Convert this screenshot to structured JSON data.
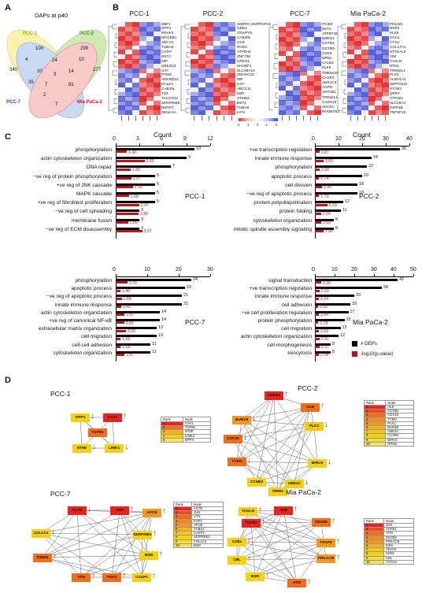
{
  "panels": {
    "A": {
      "letter": "A",
      "title": "DAPs at p40"
    },
    "B": {
      "letter": "B"
    },
    "C": {
      "letter": "C"
    },
    "D": {
      "letter": "D"
    }
  },
  "venn": {
    "sets": [
      {
        "name": "PCC-1",
        "color": "#f2e86b",
        "text_color": "#b8a800"
      },
      {
        "name": "PCC-2",
        "color": "#a8d878",
        "text_color": "#3a9a10"
      },
      {
        "name": "PCC-7",
        "color": "#9dbbe8",
        "text_color": "#2b3fd8"
      },
      {
        "name": "Mia PaCa-2",
        "color": "#f3a1a1",
        "text_color": "#e0102a"
      }
    ],
    "numbers": [
      "100",
      "299",
      "340",
      "24",
      "277",
      "20",
      "4",
      "14",
      "10",
      "3",
      "35",
      "7",
      "81",
      "2",
      "7"
    ]
  },
  "heatmaps": [
    {
      "title": "PCC-1",
      "genes": [
        "SBF1",
        "DPP4",
        "ERAP2",
        "MAGEB1",
        "ABCC2",
        "TUBA8",
        "CATIF",
        "DSTC",
        "MIF",
        "UBE2D3",
        "UXT",
        "PTMS",
        "ANKRD22",
        "DCLK1",
        "CAB39L",
        "TX2",
        "TACSTD2",
        "SERPINB8",
        "BSPRY",
        "SEMA3A"
      ]
    },
    {
      "title": "PCC-2",
      "genes": [
        "SNRPG;SNRPGP15",
        "GDE1",
        "CRAPYN",
        "CAB39L",
        "GCK",
        "RHOC",
        "ATP5H3",
        "ZNF706",
        "CREG1",
        "SHURF1",
        "SLC39A10",
        "ZDHHC20",
        "MIF",
        "UXT",
        "ABCC11",
        "EBP",
        "STMN2",
        "BST2",
        "TUBA8",
        "IAF9"
      ]
    },
    {
      "title": "PCC-7",
      "genes": [
        "ITGB4",
        "BST2",
        "ATP5F1E",
        "NME53",
        "GSTM1",
        "GSTM3",
        "CDK6",
        "MPDL",
        "CALB2",
        "KLK6",
        "TMEM167",
        "CASP4",
        "AKR1C3",
        "AGPH",
        "AKR1B1",
        "TPD52L1",
        "CADS18",
        "ADH1C",
        "RHOBTB3"
      ]
    },
    {
      "title": "Mia PaCa-2",
      "genes": [
        "PDLIM1",
        "NRP2",
        "KLK6",
        "GCH1",
        "CTSC",
        "COL17A1",
        "ST3GAL5",
        "VIM",
        "TAGLN",
        "RTN1",
        "TPD52L1",
        "PLS3",
        "ALDH1A1",
        "SEPTIN10",
        "IFITM3",
        "QPRT",
        "ATP1B1",
        "SLC29A4",
        "INPP4B",
        "TNFSF18"
      ]
    }
  ],
  "colorbar": {
    "labels": [
      "2",
      "1",
      "0",
      "-1",
      "-2"
    ]
  },
  "bar_charts": [
    {
      "title": "PCC-1",
      "axis_title": "Count",
      "ticks": [
        "0",
        "3",
        "6",
        "9",
        "12"
      ],
      "max": 12,
      "terms": [
        "phosphorylation",
        "actin cytoskeleton organization",
        "DNA repair",
        "−ve reg of protein phosphorylation",
        "+ve reg of JNK cascade",
        "MAPK cascade",
        "+ve reg of fibroblast proliferation",
        "−ve reg of cell spreading",
        "membrane fusion",
        "−ve reg of ECM disassembly"
      ],
      "counts": [
        10,
        9,
        7,
        5,
        5,
        5,
        5,
        3,
        3,
        3
      ],
      "pvals": [
        "1.40",
        "3.65",
        "1.89",
        "1.97",
        "2.18",
        "1.68",
        "2.97",
        "2.89",
        "1.56",
        "3.37"
      ]
    },
    {
      "title": "PCC-2",
      "axis_title": "Count",
      "ticks": [
        "0",
        "10",
        "20",
        "30",
        "40"
      ],
      "max": 40,
      "terms": [
        "+ve transcription regulation",
        "innate immune response",
        "phosphorylation",
        "apoptotic process",
        "cell division",
        "−ve reg of apoptotic process",
        "protein polyubiquitination",
        "protein folding",
        "cytoskeleton organization",
        "mitotic spindle assembly signaling"
      ],
      "counts": [
        36,
        24,
        22,
        20,
        18,
        18,
        12,
        11,
        8,
        8
      ],
      "pvals": [
        "1.87",
        "3.63",
        "2.00",
        "1.74",
        "2.96",
        "1.79",
        "5.23",
        "2.54",
        "2.65",
        "3.56"
      ]
    },
    {
      "title": "PCC-7",
      "axis_title": "",
      "ticks": [
        "0",
        "10",
        "20",
        "30"
      ],
      "max": 30,
      "terms": [
        "phosphorylation",
        "apoptotic process",
        "−ve reg of apoptotic process",
        "innate immune response",
        "actin cytoskeleton organization",
        "+ve reg of canonical NF-κB",
        "extracellular matrix organization",
        "cell migration",
        "cell-cell adhesion",
        "cytoskeleton organization"
      ],
      "counts": [
        24,
        22,
        21,
        21,
        14,
        14,
        13,
        13,
        11,
        11
      ],
      "pvals": [
        "3.70",
        "1.49",
        "1.89",
        "1.65",
        "2.87",
        "2.65",
        "3.20",
        "1.55",
        "1.58",
        "2.87"
      ]
    },
    {
      "title": "Mia PaCa-2",
      "axis_title": "",
      "ticks": [
        "0",
        "10",
        "20",
        "30",
        "40",
        "50"
      ],
      "max": 50,
      "terms": [
        "signal transduction",
        "+ve transcription regulation",
        "innate immune response",
        "cell adhesion",
        "−ve cell proliferation regulation",
        "protein phosphorylation",
        "cell migration",
        "actin cytoskeleton organization",
        "cell morphogenesis",
        "exocytosis"
      ],
      "counts": [
        42,
        34,
        20,
        18,
        17,
        15,
        13,
        12,
        8,
        8
      ],
      "pvals": [
        "3.20",
        "2.20",
        "2.04",
        "1.60",
        "1.94",
        "1.79",
        "2.03",
        "2.31",
        "2.37",
        "2.08"
      ]
    }
  ],
  "legend": {
    "deps": "# DEPs",
    "pval": "-log10(p-value)"
  },
  "networks": [
    {
      "title": "PCC-1",
      "nodes": [
        {
          "label": "CAV1",
          "color": "#e8241c",
          "arrow": "up"
        },
        {
          "label": "DPP4",
          "color": "#f6d10e",
          "arrow": "down"
        },
        {
          "label": "TGFB1",
          "color": "#f26d18",
          "arrow": ""
        },
        {
          "label": "NT5E",
          "color": "#f6d10e",
          "arrow": "down"
        },
        {
          "label": "LIMK1",
          "color": "#f6d10e",
          "arrow": "down"
        }
      ],
      "table": [
        [
          "1",
          "CAV1"
        ],
        [
          "2",
          "TGFB1"
        ],
        [
          "3",
          "NT5E"
        ],
        [
          "4",
          "LIMK1"
        ],
        [
          "5",
          "DPP4"
        ]
      ]
    },
    {
      "title": "PCC-2",
      "nodes": [
        {
          "label": "CDKN1",
          "color": "#e8241c",
          "arrow": "up"
        },
        {
          "label": "BUB1B",
          "color": "#f39a1e",
          "arrow": "down"
        },
        {
          "label": "ALB",
          "color": "#f26d18",
          "arrow": "up"
        },
        {
          "label": "CDC20",
          "color": "#f26d18",
          "arrow": "down"
        },
        {
          "label": "PLK1",
          "color": "#f6c90f",
          "arrow": "down"
        },
        {
          "label": "TYMS",
          "color": "#f26d18",
          "arrow": "down"
        },
        {
          "label": "BIRC5",
          "color": "#f6d10e",
          "arrow": "down"
        },
        {
          "label": "CCNB2",
          "color": "#f6d10e",
          "arrow": ""
        },
        {
          "label": "UBE2C",
          "color": "#f6d10e",
          "arrow": "down"
        },
        {
          "label": "RRM2",
          "color": "#f6d10e",
          "arrow": ""
        }
      ],
      "table": [
        [
          "1",
          "ALB"
        ],
        [
          "2",
          "CCNB1"
        ],
        [
          "3",
          "CDC20"
        ],
        [
          "4",
          "TYMS"
        ],
        [
          "5",
          "PLK1"
        ],
        [
          "6",
          "BUB1B"
        ],
        [
          "7",
          "UBE2C"
        ],
        [
          "8",
          "CCNB2"
        ],
        [
          "9",
          "BIRC5"
        ],
        [
          "10",
          "RRM2"
        ]
      ]
    },
    {
      "title": "PCC-7",
      "nodes": [
        {
          "label": "ACTB",
          "color": "#e8241c",
          "arrow": "down"
        },
        {
          "label": "JUN",
          "color": "#e8241c",
          "arrow": "up"
        },
        {
          "label": "APOE",
          "color": "#f39a1e",
          "arrow": "up"
        },
        {
          "label": "COL1A2",
          "color": "#f6d10e",
          "arrow": "down"
        },
        {
          "label": "SERPINE1",
          "color": "#f6d10e",
          "arrow": "up"
        },
        {
          "label": "THBS1",
          "color": "#f26d18",
          "arrow": "up"
        },
        {
          "label": "B2M",
          "color": "#f6d10e",
          "arrow": "up"
        },
        {
          "label": "VTN",
          "color": "#f26d18",
          "arrow": "up"
        },
        {
          "label": "FGF2",
          "color": "#f26d18",
          "arrow": "up"
        },
        {
          "label": "CASP1",
          "color": "#f6d10e",
          "arrow": "up"
        }
      ],
      "table": [
        [
          "1",
          "ACTB"
        ],
        [
          "2",
          "JUN"
        ],
        [
          "3",
          "VTN"
        ],
        [
          "4",
          "FGF2"
        ],
        [
          "5",
          "APOE"
        ],
        [
          "6",
          "THBS1"
        ],
        [
          "7",
          "CASP1"
        ],
        [
          "8",
          "SERPINE1"
        ],
        [
          "9",
          "COL1A2"
        ],
        [
          "10",
          "B2M"
        ]
      ]
    },
    {
      "title": "Mia PaCa-2",
      "nodes": [
        {
          "label": "TAGLN",
          "color": "#f6d10e",
          "arrow": "up"
        },
        {
          "label": "JUN",
          "color": "#e8241c",
          "arrow": "up"
        },
        {
          "label": "TGFB1",
          "color": "#e8241c",
          "arrow": "up"
        },
        {
          "label": "DDX58",
          "color": "#f26d18",
          "arrow": "up"
        },
        {
          "label": "CD81",
          "color": "#f6d10e",
          "arrow": "up"
        },
        {
          "label": "TRAF6",
          "color": "#f39a1e",
          "arrow": "up"
        },
        {
          "label": "CBL",
          "color": "#f6d10e",
          "arrow": "up"
        },
        {
          "label": "PRKACB",
          "color": "#f39a1e",
          "arrow": "up"
        },
        {
          "label": "B2M",
          "color": "#f6d10e",
          "arrow": "up"
        },
        {
          "label": "ATM",
          "color": "#f26d18",
          "arrow": "up"
        }
      ],
      "table": [
        [
          "1",
          "JUN"
        ],
        [
          "2",
          "TGFB1"
        ],
        [
          "3",
          "ATM"
        ],
        [
          "4",
          "DDX58"
        ],
        [
          "5",
          "PRKACB"
        ],
        [
          "6",
          "B2M"
        ],
        [
          "7",
          "TRAF6"
        ],
        [
          "8",
          "CD81"
        ],
        [
          "9",
          "CBL"
        ],
        [
          "10",
          "TAGLN"
        ]
      ]
    }
  ],
  "table_headers": {
    "rank": "Rank",
    "node": "Node"
  }
}
